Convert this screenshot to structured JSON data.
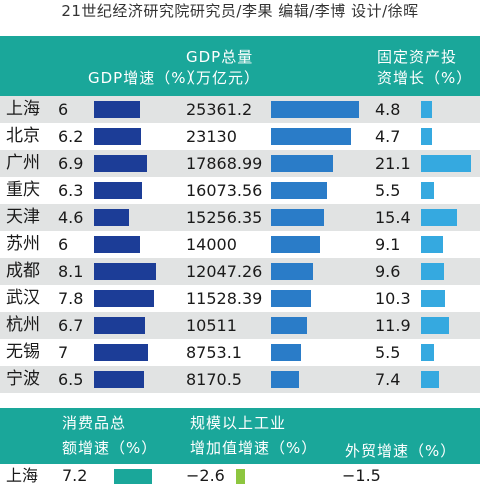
{
  "credit": "21世纪经济研究院研究员/李果 编辑/李博 设计/徐晖",
  "headers": {
    "gdp_growth": [
      "GDP增速（%）"
    ],
    "gdp_total": [
      "GDP总量",
      "（万亿元）"
    ],
    "fai_growth": [
      "固定资产投",
      "资增长（%）"
    ]
  },
  "colors": {
    "band": "#1aa79a",
    "gdp_growth_bar": "#1c3d97",
    "gdp_total_bar": "#2a7cc8",
    "fai_bar": "#35a9e0",
    "consumption_bar": "#1aa79a",
    "industry_bar": "#8dc63f"
  },
  "chart_data": [
    {
      "type": "table",
      "columns": [
        "GDP增速（%）",
        "GDP总量（万亿元）",
        "固定资产投资增长（%）"
      ],
      "rows": [
        {
          "city": "上海",
          "gdp_growth": 6,
          "gdp_total": 25361.2,
          "fai_growth": 4.8,
          "gdp_growth_text": "6",
          "gdp_total_text": "25361.2",
          "fai_growth_text": "4.8"
        },
        {
          "city": "北京",
          "gdp_growth": 6.2,
          "gdp_total": 23130,
          "fai_growth": 4.7,
          "gdp_growth_text": "6.2",
          "gdp_total_text": "23130",
          "fai_growth_text": "4.7"
        },
        {
          "city": "广州",
          "gdp_growth": 6.9,
          "gdp_total": 17868.99,
          "fai_growth": 21.1,
          "gdp_growth_text": "6.9",
          "gdp_total_text": "17868.99",
          "fai_growth_text": "21.1"
        },
        {
          "city": "重庆",
          "gdp_growth": 6.3,
          "gdp_total": 16073.56,
          "fai_growth": 5.5,
          "gdp_growth_text": "6.3",
          "gdp_total_text": "16073.56",
          "fai_growth_text": "5.5"
        },
        {
          "city": "天津",
          "gdp_growth": 4.6,
          "gdp_total": 15256.35,
          "fai_growth": 15.4,
          "gdp_growth_text": "4.6",
          "gdp_total_text": "15256.35",
          "fai_growth_text": "15.4"
        },
        {
          "city": "苏州",
          "gdp_growth": 6,
          "gdp_total": 14000,
          "fai_growth": 9.1,
          "gdp_growth_text": "6",
          "gdp_total_text": "14000",
          "fai_growth_text": "9.1"
        },
        {
          "city": "成都",
          "gdp_growth": 8.1,
          "gdp_total": 12047.26,
          "fai_growth": 9.6,
          "gdp_growth_text": "8.1",
          "gdp_total_text": "12047.26",
          "fai_growth_text": "9.6"
        },
        {
          "city": "武汉",
          "gdp_growth": 7.8,
          "gdp_total": 11528.39,
          "fai_growth": 10.3,
          "gdp_growth_text": "7.8",
          "gdp_total_text": "11528.39",
          "fai_growth_text": "10.3"
        },
        {
          "city": "杭州",
          "gdp_growth": 6.7,
          "gdp_total": 10511,
          "fai_growth": 11.9,
          "gdp_growth_text": "6.7",
          "gdp_total_text": "10511",
          "fai_growth_text": "11.9"
        },
        {
          "city": "无锡",
          "gdp_growth": 7,
          "gdp_total": 8753.1,
          "fai_growth": 5.5,
          "gdp_growth_text": "7",
          "gdp_total_text": "8753.1",
          "fai_growth_text": "5.5"
        },
        {
          "city": "宁波",
          "gdp_growth": 6.5,
          "gdp_total": 8170.5,
          "fai_growth": 7.4,
          "gdp_growth_text": "6.5",
          "gdp_total_text": "8170.5",
          "fai_growth_text": "7.4"
        }
      ]
    },
    {
      "type": "table",
      "columns": [
        "消费品总额增速（%）",
        "规模以上工业增加值增速（%）",
        "外贸增速（%）"
      ],
      "headers": {
        "consumption": [
          "消费品总",
          "额增速（%）"
        ],
        "industry": [
          "规模以上工业",
          "增加值增速（%）"
        ],
        "trade": [
          "外贸增速（%）"
        ]
      },
      "rows": [
        {
          "city": "上海",
          "consumption": 7.2,
          "industry": -2.6,
          "trade": -1.5,
          "consumption_text": "7.2",
          "industry_text": "−2.6",
          "trade_text": "−1.5"
        }
      ]
    }
  ]
}
